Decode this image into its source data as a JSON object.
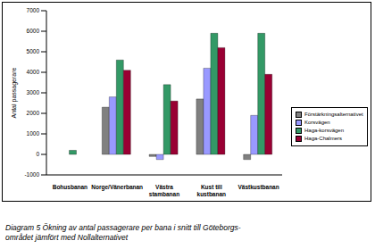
{
  "chart_data": {
    "type": "bar",
    "title": "Diagram 5 Ökning av antal passagerare per bana i snitt till Göteborgs-området jämfört med Nollalternativet",
    "y_label": "Antal passagerare",
    "categories": [
      "Bohusbanan",
      "Norge/Vänerbanan",
      "Västra stambanan",
      "Kust till kustbanan",
      "Västkustbanan"
    ],
    "series": [
      {
        "name": "Förstärkningsalternativet",
        "color": "#808080",
        "values": [
          0,
          2300,
          -100,
          2700,
          -250
        ]
      },
      {
        "name": "Korsvägen",
        "color": "#9999ff",
        "values": [
          0,
          2800,
          -250,
          4200,
          1900
        ]
      },
      {
        "name": "Haga-korsvägen",
        "color": "#339966",
        "values": [
          200,
          4600,
          3400,
          5900,
          5900
        ]
      },
      {
        "name": "Haga-Chalmers",
        "color": "#990033",
        "values": [
          0,
          4100,
          2600,
          5200,
          3900
        ]
      }
    ],
    "ylim": [
      -1000,
      7000
    ],
    "yticks": [
      -1000,
      0,
      1000,
      2000,
      3000,
      4000,
      5000,
      6000,
      7000
    ],
    "grid": false,
    "legend": "right"
  }
}
